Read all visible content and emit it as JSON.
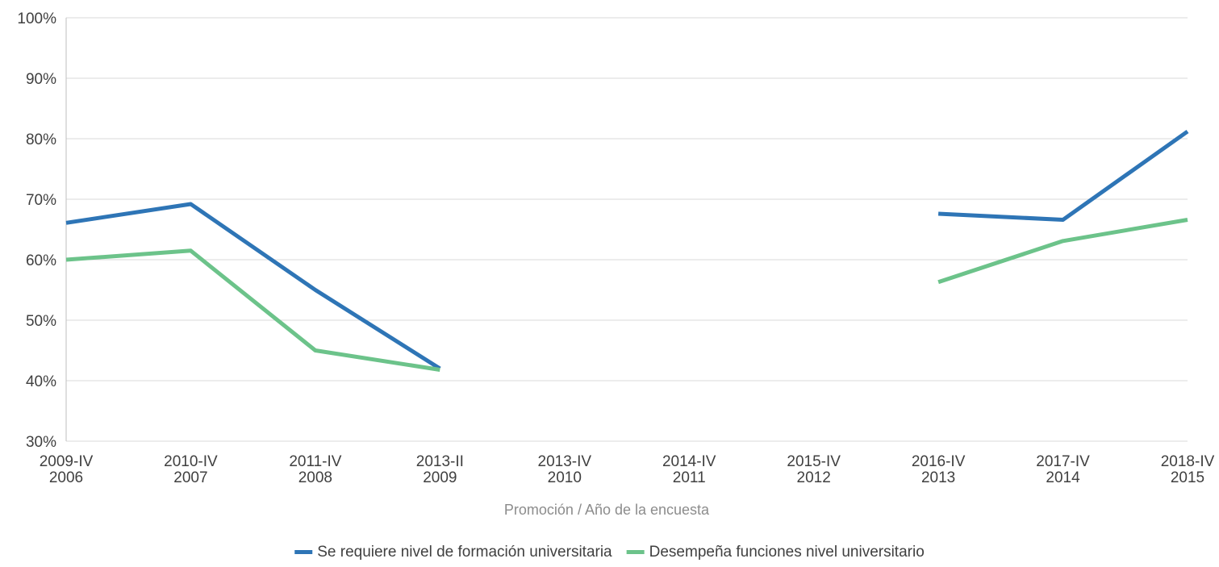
{
  "chart_data": {
    "type": "line",
    "xlabel": "Promoción / Año de la encuesta",
    "ylabel": "",
    "ylim": [
      30,
      100
    ],
    "y_ticks": [
      "30%",
      "40%",
      "50%",
      "60%",
      "70%",
      "80%",
      "90%",
      "100%"
    ],
    "categories": [
      {
        "top": "2009-IV",
        "bottom": "2006"
      },
      {
        "top": "2010-IV",
        "bottom": "2007"
      },
      {
        "top": "2011-IV",
        "bottom": "2008"
      },
      {
        "top": "2013-II",
        "bottom": "2009"
      },
      {
        "top": "2013-IV",
        "bottom": "2010"
      },
      {
        "top": "2014-IV",
        "bottom": "2011"
      },
      {
        "top": "2015-IV",
        "bottom": "2012"
      },
      {
        "top": "2016-IV",
        "bottom": "2013"
      },
      {
        "top": "2017-IV",
        "bottom": "2014"
      },
      {
        "top": "2018-IV",
        "bottom": "2015"
      }
    ],
    "series": [
      {
        "name": "Se requiere nivel de formación universitaria",
        "color": "#2e75b6",
        "values": [
          66.1,
          69.2,
          55.0,
          42.0,
          null,
          null,
          null,
          67.6,
          66.6,
          81.2
        ]
      },
      {
        "name": "Desempeña funciones nivel universitario",
        "color": "#6cc38a",
        "values": [
          60.0,
          61.5,
          45.0,
          41.8,
          null,
          null,
          null,
          56.3,
          63.1,
          66.6
        ]
      }
    ],
    "grid": true,
    "legend_position": "bottom-center"
  }
}
